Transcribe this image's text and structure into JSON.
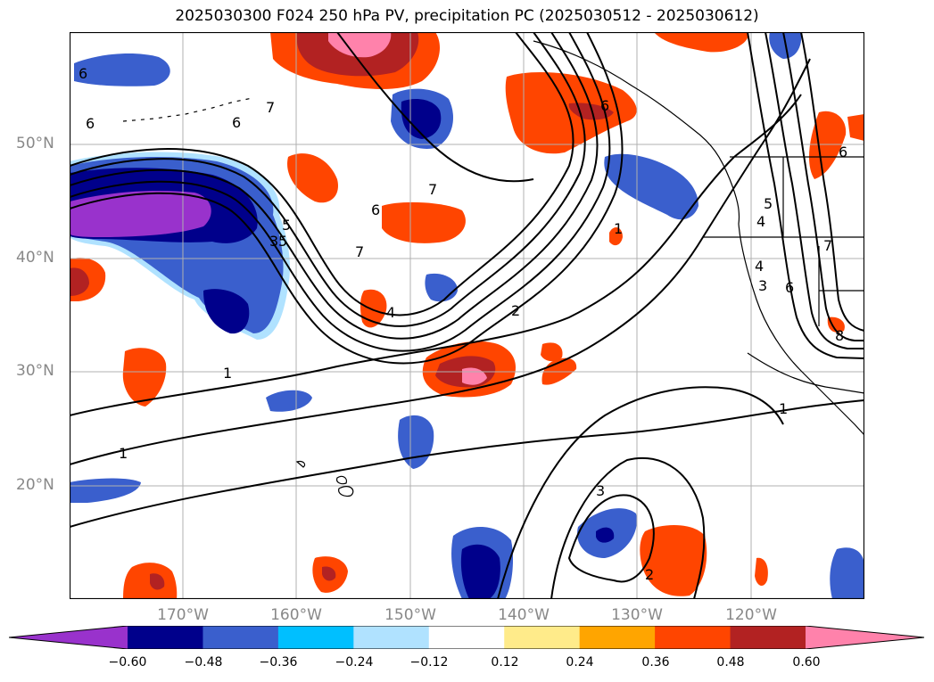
{
  "title": "2025030300 F024 250 hPa PV, precipitation PC (2025030512 - 2025030612)",
  "lat_labels": [
    "50°N",
    "40°N",
    "30°N",
    "20°N"
  ],
  "lon_labels": [
    "170°W",
    "160°W",
    "150°W",
    "140°W",
    "130°W",
    "120°W"
  ],
  "colorbar": {
    "ticks": [
      "−0.60",
      "−0.48",
      "−0.36",
      "−0.24",
      "−0.12",
      "0.12",
      "0.24",
      "0.36",
      "0.48",
      "0.60"
    ],
    "colors": [
      "#9932cc",
      "#00008b",
      "#3a5fcd",
      "#00bfff",
      "#b0e2ff",
      "#ffffff",
      "#ffeb8a",
      "#ffa500",
      "#ff4500",
      "#b22222",
      "#ff82ab"
    ]
  },
  "contour_labels": [
    "6",
    "6",
    "7",
    "5",
    "6",
    "6",
    "7",
    "7",
    "6",
    "4",
    "5",
    "3",
    "4",
    "2",
    "1",
    "1",
    "1",
    "3",
    "2",
    "5",
    "4",
    "3",
    "6",
    "7",
    "8",
    "1",
    "6"
  ],
  "map_colors": {
    "land": "#000000",
    "grid": "#b0b0b0",
    "contour": "#000000"
  }
}
